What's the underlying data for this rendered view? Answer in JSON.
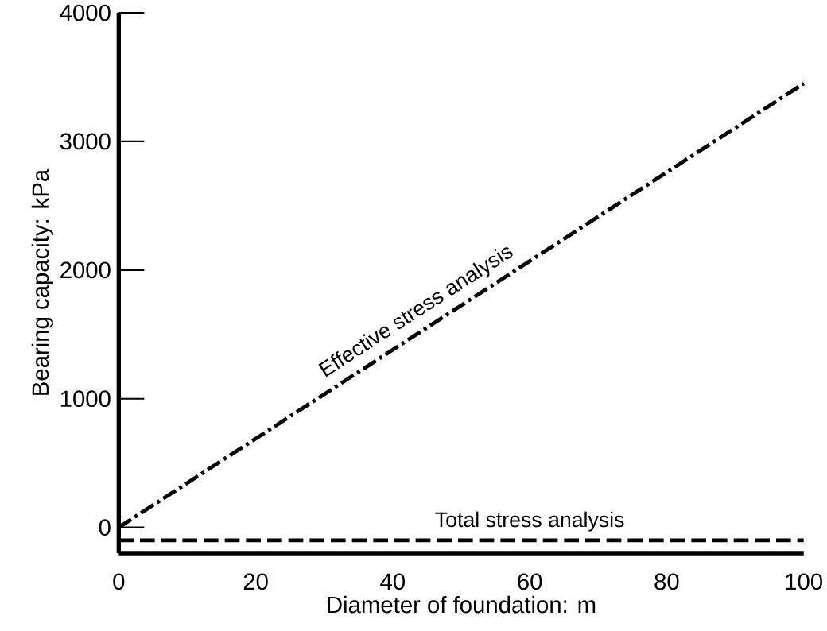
{
  "chart_data": {
    "type": "line",
    "xlabel": "Diameter of foundation: m",
    "ylabel": "Bearing capacity: kPa",
    "xlim": [
      0,
      100
    ],
    "xticks": [
      0,
      20,
      40,
      60,
      80,
      100
    ],
    "x": [
      0,
      100
    ],
    "ylim": [
      -200,
      4000
    ],
    "yticks": [
      0,
      1000,
      2000,
      3000,
      4000
    ],
    "series": [
      {
        "name": "Effective stress analysis",
        "color": "#000000",
        "line_style": "dashdot",
        "values": [
          0,
          3450
        ]
      },
      {
        "name": "Total stress analysis",
        "color": "#000000",
        "line_style": "dashed",
        "values": [
          -100,
          -100
        ]
      }
    ]
  }
}
